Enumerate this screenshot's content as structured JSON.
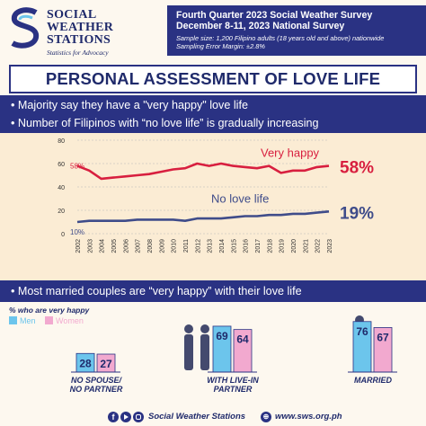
{
  "header": {
    "logo_line1": "SOCIAL",
    "logo_line2": "WEATHER",
    "logo_line3": "STATIONS",
    "logo_tagline": "Statistics for Advocacy",
    "survey_line1": "Fourth Quarter 2023 Social Weather Survey",
    "survey_line2": "December 8-11, 2023 National Survey",
    "sample_line": "Sample size: 1,200 Filipino adults (18 years old and above) nationwide",
    "error_line": "Sampling Error Margin: ±2.8%"
  },
  "title": "PERSONAL ASSESSMENT OF LOVE LIFE",
  "bullets": [
    "Majority say they have a \"very happy\" love life",
    "Number of Filipinos with “no love life” is gradually increasing"
  ],
  "bullet2": "Most  married couples are “very happy” with their love life",
  "colors": {
    "navy": "#2a3283",
    "very_happy": "#d81f3f",
    "no_love_life": "#3f4c8a",
    "men": "#6cc5ec",
    "women": "#f2a9cf"
  },
  "chart_data": [
    {
      "type": "line",
      "ylim": [
        0,
        80
      ],
      "yticks": [
        "0",
        "20",
        "40",
        "60",
        "80"
      ],
      "x": [
        "2002",
        "2003",
        "2004",
        "2005",
        "2006",
        "2007",
        "2008",
        "2009",
        "2010",
        "2011",
        "2012",
        "2013",
        "2014",
        "2015",
        "2016",
        "2017",
        "2018",
        "2019",
        "2020",
        "2021",
        "2022",
        "2023"
      ],
      "series": [
        {
          "name": "Very happy",
          "values": [
            58,
            54,
            47,
            48,
            49,
            50,
            51,
            53,
            55,
            56,
            60,
            58,
            60,
            58,
            57,
            56,
            58,
            52,
            54,
            54,
            57,
            58
          ],
          "start_label": "58%",
          "end_label": "58%"
        },
        {
          "name": "No love life",
          "values": [
            10,
            11,
            11,
            11,
            11,
            12,
            12,
            12,
            12,
            11,
            13,
            13,
            13,
            14,
            15,
            15,
            16,
            16,
            17,
            17,
            18,
            19
          ],
          "start_label": "10%",
          "end_label": "19%"
        }
      ]
    },
    {
      "type": "bar",
      "legend_title": "% who are very happy",
      "series_names": [
        "Men",
        "Women"
      ],
      "categories": [
        "NO SPOUSE/\nNO PARTNER",
        "WITH LIVE-IN\nPARTNER",
        "MARRIED"
      ],
      "values": [
        [
          28,
          27
        ],
        [
          69,
          64
        ],
        [
          76,
          67
        ]
      ]
    }
  ],
  "footer": {
    "org": "Social Weather Stations",
    "site": "www.sws.org.ph"
  }
}
